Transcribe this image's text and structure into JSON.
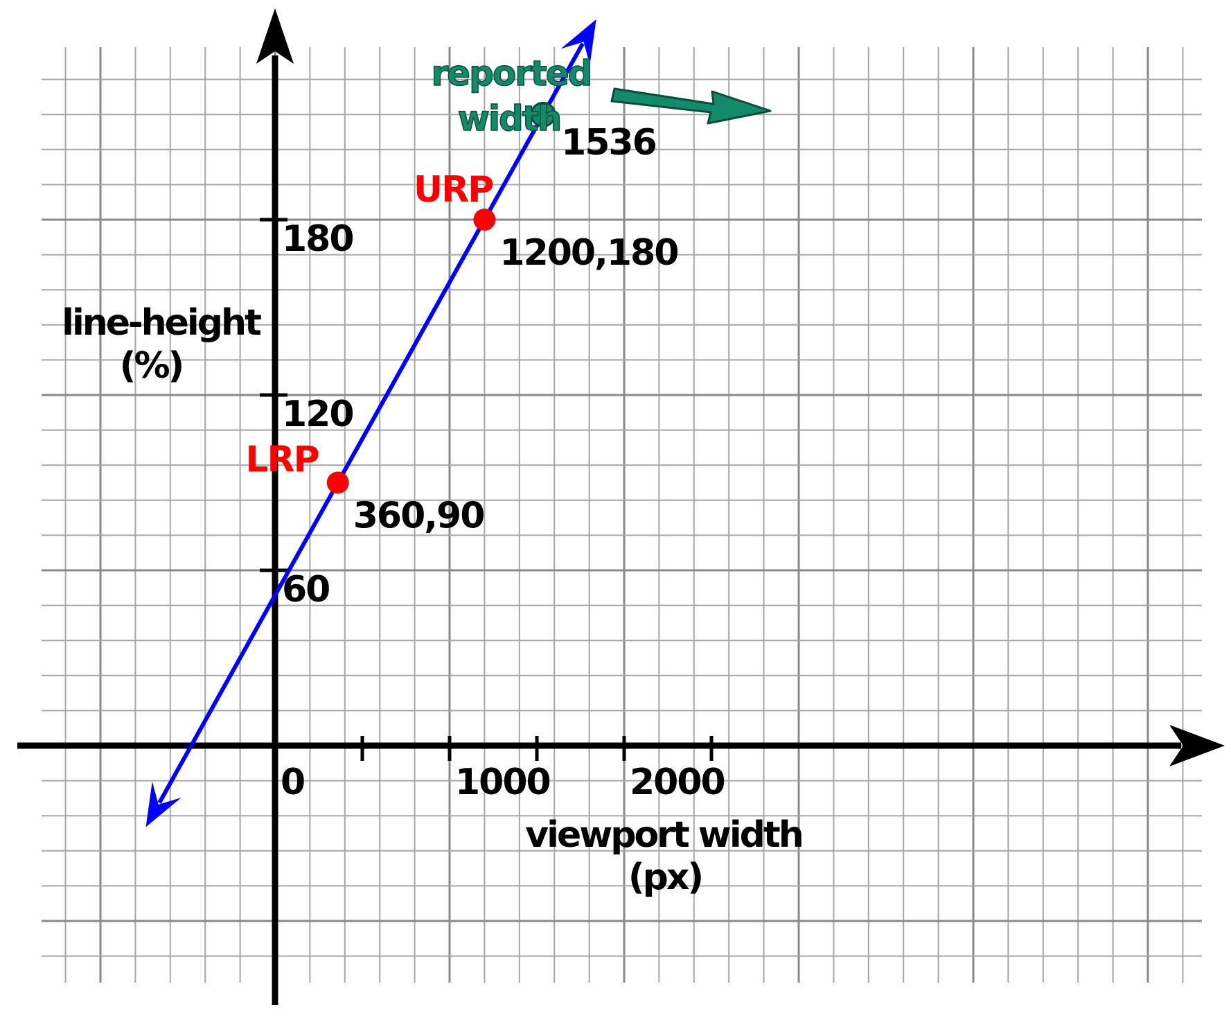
{
  "chart_data": {
    "type": "line",
    "xlabel": [
      "viewport width",
      "(px)"
    ],
    "ylabel": [
      "line-height",
      "(%)"
    ],
    "x_tick_labels": [
      {
        "value": 0,
        "text": "0"
      },
      {
        "value": 1000,
        "text": "1000"
      },
      {
        "value": 2000,
        "text": "2000"
      }
    ],
    "y_tick_labels": [
      {
        "value": 60,
        "text": "60"
      },
      {
        "value": 120,
        "text": "120"
      },
      {
        "value": 180,
        "text": "180"
      }
    ],
    "x_major_ticks": [
      500,
      1000,
      1500,
      2000,
      2500
    ],
    "y_major_ticks": [
      60,
      120,
      180
    ],
    "xlim": [
      -740,
      2600
    ],
    "ylim": [
      -87,
      240
    ],
    "grid": true,
    "line": {
      "slope_per_px": 0.10714,
      "intercept": 51.43,
      "x_range": [
        -740,
        1840
      ],
      "color": "#0000ff"
    },
    "points": [
      {
        "name": "LRP",
        "x": 360,
        "y": 90,
        "label": "360,90",
        "color": "#ff0000"
      },
      {
        "name": "URP",
        "x": 1200,
        "y": 180,
        "label": "1200,180",
        "color": "#ff0000"
      },
      {
        "name": "",
        "x": 1536,
        "y": 216,
        "label": "1536",
        "color": "#138a6a"
      }
    ],
    "annotation": {
      "lines": [
        "reported",
        "width"
      ],
      "color": "#138a6a",
      "points_to": "1536"
    }
  }
}
